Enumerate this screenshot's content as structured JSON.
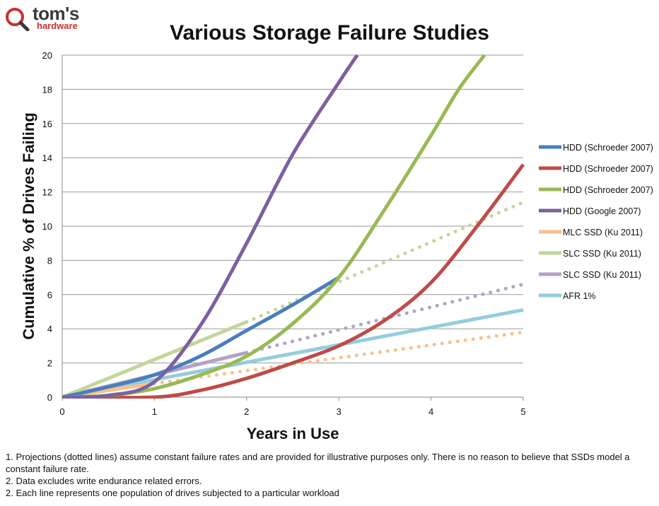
{
  "brand": {
    "name": "tom's",
    "sub": "hardware"
  },
  "notes": [
    "1. Projections (dotted lines) assume constant failure rates and are provided for illustrative purposes only. There is no reason to believe that SSDs model a constant failure rate.",
    "2. Data excludes write endurance related errors.",
    "2. Each line represents one population of drives subjected to a particular workload"
  ],
  "chart_data": {
    "type": "line",
    "title": "Various Storage Failure Studies",
    "xlabel": "Years in Use",
    "ylabel": "Cumulative % of Drives Failing",
    "xlim": [
      0,
      5
    ],
    "ylim": [
      0,
      20
    ],
    "xticks": [
      0,
      1,
      2,
      3,
      4,
      5
    ],
    "yticks": [
      0,
      2,
      4,
      6,
      8,
      10,
      12,
      14,
      16,
      18,
      20
    ],
    "grid": "horizontal",
    "legend_position": "right",
    "series": [
      {
        "name": "HDD (Schroeder 2007)",
        "color": "#4a7ebb",
        "points": [
          [
            0,
            0
          ],
          [
            0.5,
            0.6
          ],
          [
            1,
            1.3
          ],
          [
            1.5,
            2.4
          ],
          [
            2,
            3.9
          ],
          [
            2.5,
            5.4
          ],
          [
            3,
            7.0
          ]
        ],
        "projection": []
      },
      {
        "name": "HDD (Schroeder 2007)",
        "color": "#be4b48",
        "points": [
          [
            0,
            0
          ],
          [
            1,
            0
          ],
          [
            1.5,
            0.4
          ],
          [
            2,
            1.1
          ],
          [
            2.5,
            2.0
          ],
          [
            3,
            3.0
          ],
          [
            3.5,
            4.5
          ],
          [
            4,
            6.7
          ],
          [
            4.5,
            10.0
          ],
          [
            5,
            13.6
          ]
        ],
        "projection": []
      },
      {
        "name": "HDD (Schroeder 2007)",
        "color": "#98b954",
        "points": [
          [
            0,
            0
          ],
          [
            0.5,
            0.1
          ],
          [
            1,
            0.5
          ],
          [
            1.5,
            1.3
          ],
          [
            2,
            2.4
          ],
          [
            2.5,
            4.3
          ],
          [
            3,
            7.0
          ],
          [
            3.5,
            11.0
          ],
          [
            4,
            15.3
          ],
          [
            4.3,
            18.0
          ],
          [
            4.58,
            20.0
          ]
        ],
        "projection": []
      },
      {
        "name": "HDD (Google 2007)",
        "color": "#7d60a0",
        "points": [
          [
            0,
            0
          ],
          [
            0.5,
            0.1
          ],
          [
            1,
            0.9
          ],
          [
            1.5,
            4.2
          ],
          [
            2,
            9.0
          ],
          [
            2.5,
            14.2
          ],
          [
            3,
            18.4
          ],
          [
            3.2,
            20.0
          ]
        ],
        "projection": []
      },
      {
        "name": "MLC SSD (Ku 2011)",
        "color": "#f9c08e",
        "points": [
          [
            0,
            0
          ],
          [
            1,
            0.8
          ]
        ],
        "projection": [
          [
            1,
            0.8
          ],
          [
            5,
            3.8
          ]
        ]
      },
      {
        "name": "SLC SSD (Ku 2011)",
        "color": "#c3d69b",
        "points": [
          [
            0,
            0
          ],
          [
            2,
            4.4
          ]
        ],
        "projection": [
          [
            2,
            4.4
          ],
          [
            5,
            11.4
          ]
        ]
      },
      {
        "name": "SLC SSD (Ku 2011)",
        "color": "#b3a2c7",
        "points": [
          [
            0,
            0
          ],
          [
            2,
            2.6
          ]
        ],
        "projection": [
          [
            2,
            2.6
          ],
          [
            5,
            6.6
          ]
        ]
      },
      {
        "name": "AFR 1%",
        "color": "#93cddd",
        "points": [
          [
            0,
            0
          ],
          [
            5,
            5.1
          ]
        ],
        "projection": []
      }
    ]
  }
}
